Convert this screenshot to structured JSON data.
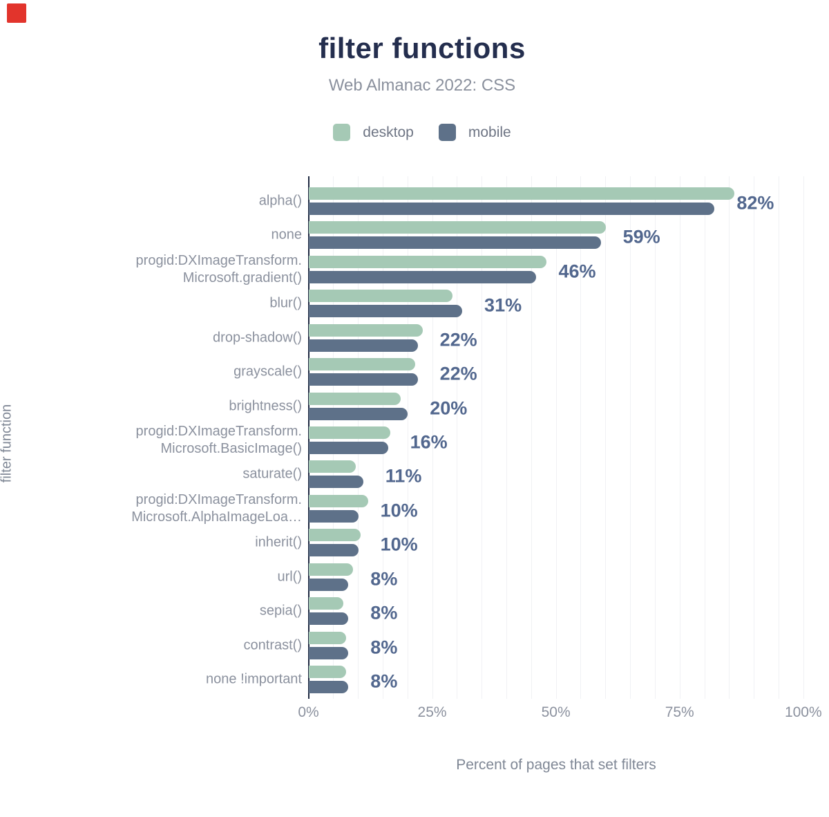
{
  "marker_color": "#e2342c",
  "chart_data": {
    "type": "bar",
    "orientation": "horizontal",
    "title": "filter functions",
    "subtitle": "Web Almanac 2022: CSS",
    "xlabel": "Percent of pages that set filters",
    "ylabel": "filter function",
    "xlim": [
      0,
      100
    ],
    "grid": "vertical every 5%",
    "legend_position": "top-center",
    "categories": [
      "alpha()",
      "none",
      "progid:DXImageTransform.\nMicrosoft.gradient()",
      "blur()",
      "drop-shadow()",
      "grayscale()",
      "brightness()",
      "progid:DXImageTransform.\nMicrosoft.BasicImage()",
      "saturate()",
      "progid:DXImageTransform.\nMicrosoft.AlphaImageLoa…",
      "inherit()",
      "url()",
      "sepia()",
      "contrast()",
      "none !important"
    ],
    "series": [
      {
        "name": "desktop",
        "color": "#a5c9b5",
        "values": [
          86,
          60,
          48,
          29,
          23,
          21.5,
          18.5,
          16.5,
          9.5,
          12,
          10.5,
          9,
          7,
          7.5,
          7.5
        ]
      },
      {
        "name": "mobile",
        "color": "#5e7189",
        "values": [
          82,
          59,
          46,
          31,
          22,
          22,
          20,
          16,
          11,
          10,
          10,
          8,
          8,
          8,
          8
        ]
      }
    ],
    "annotations": [
      "82%",
      "59%",
      "46%",
      "31%",
      "22%",
      "22%",
      "20%",
      "16%",
      "11%",
      "10%",
      "10%",
      "8%",
      "8%",
      "8%",
      "8%"
    ],
    "xticks": [
      {
        "label": "0%",
        "value": 0
      },
      {
        "label": "25%",
        "value": 25
      },
      {
        "label": "50%",
        "value": 50
      },
      {
        "label": "75%",
        "value": 75
      },
      {
        "label": "100%",
        "value": 100
      }
    ]
  }
}
